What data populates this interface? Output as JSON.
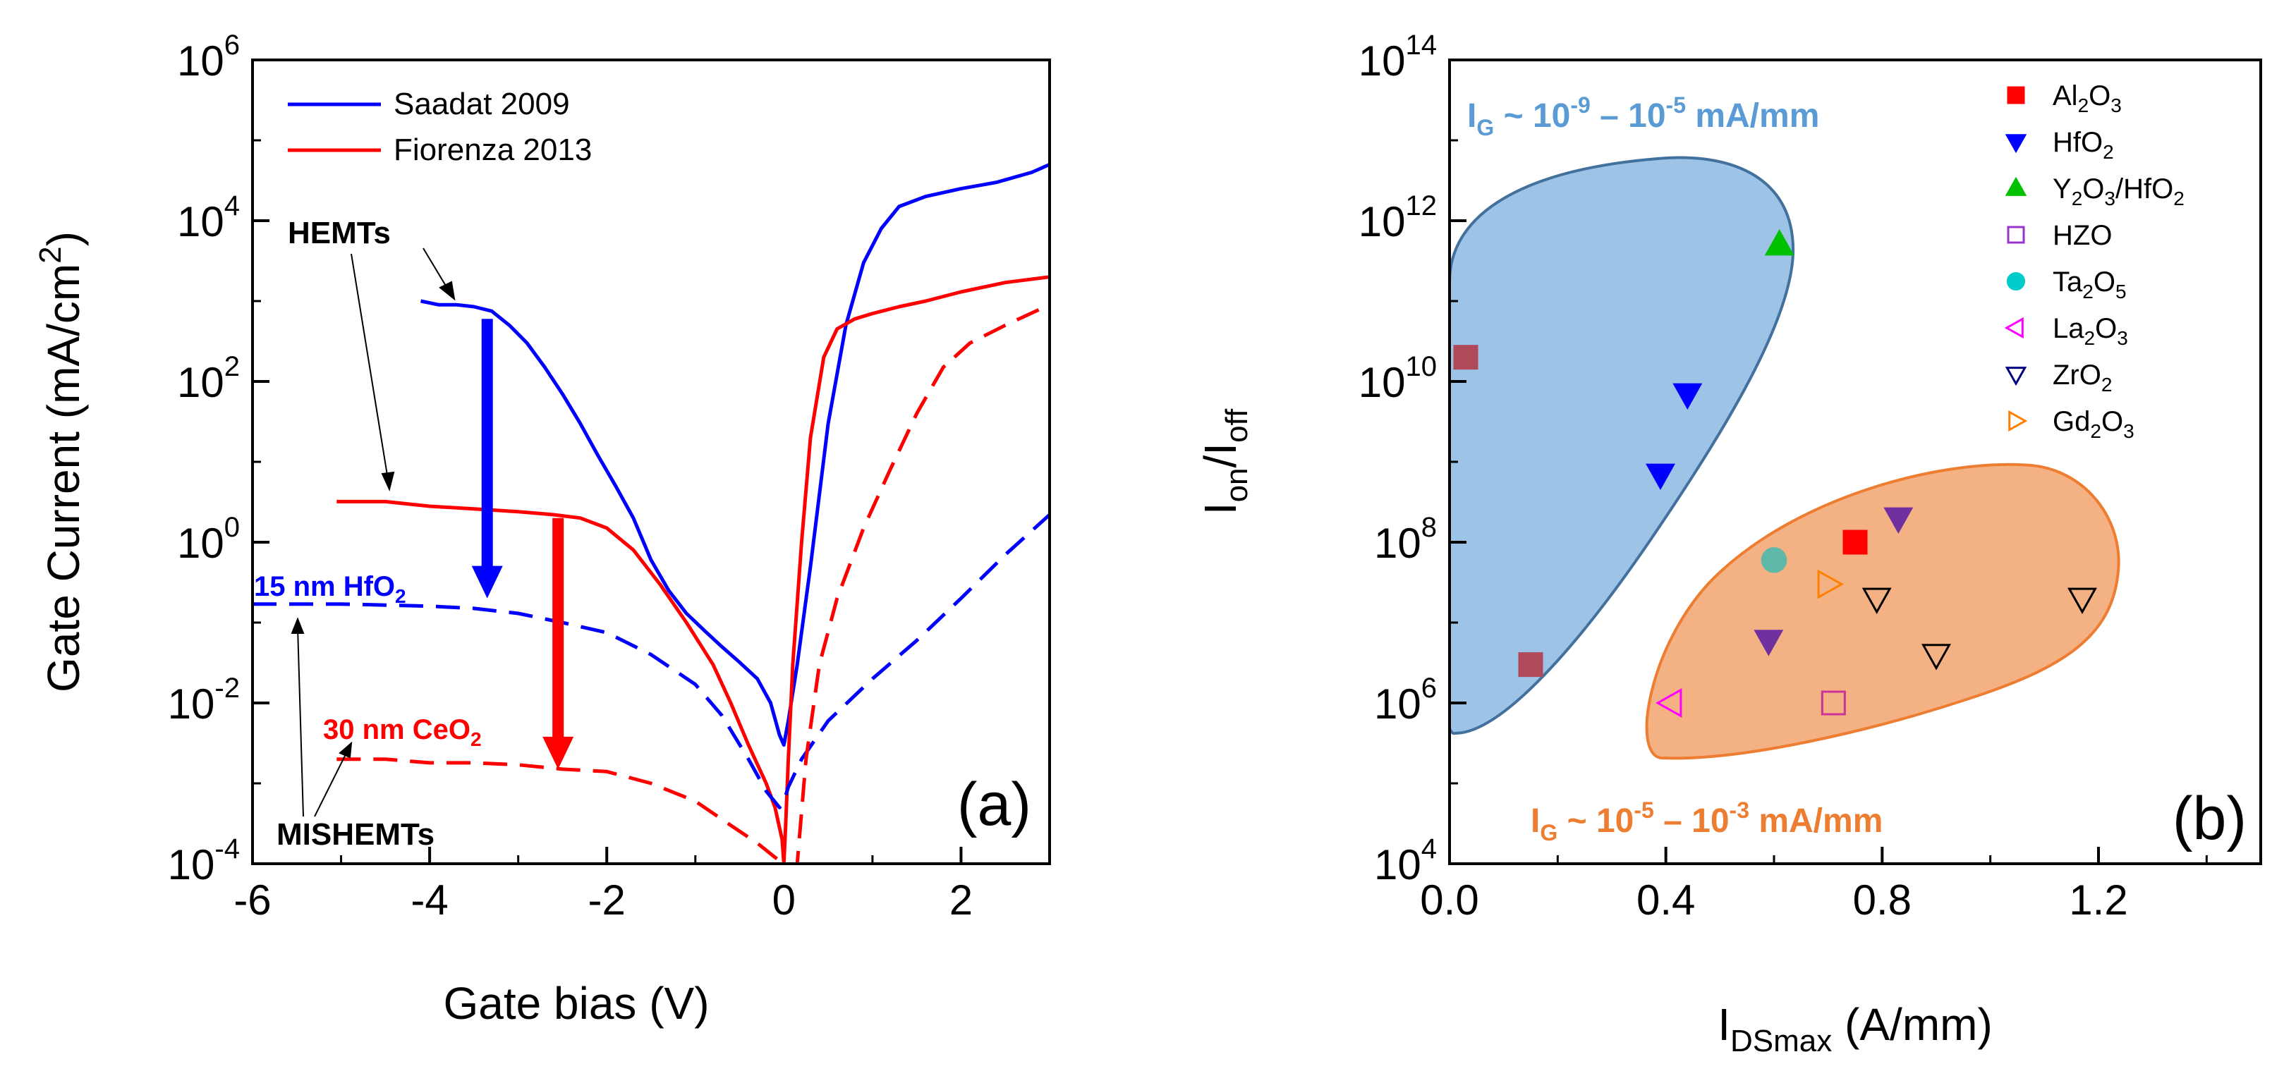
{
  "chart_data": [
    {
      "type": "line",
      "panel_label": "(a)",
      "xlabel": "Gate bias (V)",
      "ylabel": "Gate Current (mA/cm",
      "ylabel_sup": "2",
      "ylabel_end": ")",
      "xlim": [
        -6,
        3
      ],
      "ylim": [
        0.0001,
        1000000.0
      ],
      "yscale": "log",
      "xticks": [
        {
          "v": -6,
          "label": "-6"
        },
        {
          "v": -4,
          "label": "-4"
        },
        {
          "v": -2,
          "label": "-2"
        },
        {
          "v": 0,
          "label": "0"
        },
        {
          "v": 2,
          "label": "2"
        }
      ],
      "yticks": [
        {
          "e": 6,
          "base": "10",
          "exp": "6"
        },
        {
          "e": 4,
          "base": "10",
          "exp": "4"
        },
        {
          "e": 2,
          "base": "10",
          "exp": "2"
        },
        {
          "e": 0,
          "base": "10",
          "exp": "0"
        },
        {
          "e": -2,
          "base": "10",
          "exp": "-2"
        },
        {
          "e": -4,
          "base": "10",
          "exp": "-4"
        }
      ],
      "legend": [
        {
          "name": "Saadat 2009",
          "color": "#0000ff"
        },
        {
          "name": "Fiorenza 2013",
          "color": "#ff0000"
        }
      ],
      "series": [
        {
          "id": "saadat-hemt",
          "color": "#0000ff",
          "dash": false,
          "points": [
            [
              -4.1,
              1000
            ],
            [
              -3.9,
              900
            ],
            [
              -3.7,
              900
            ],
            [
              -3.5,
              850
            ],
            [
              -3.3,
              750
            ],
            [
              -3.1,
              500
            ],
            [
              -2.9,
              300
            ],
            [
              -2.7,
              150
            ],
            [
              -2.5,
              70
            ],
            [
              -2.3,
              30
            ],
            [
              -2.1,
              12
            ],
            [
              -1.9,
              5
            ],
            [
              -1.7,
              2
            ],
            [
              -1.5,
              0.6
            ],
            [
              -1.3,
              0.25
            ],
            [
              -1.1,
              0.13
            ],
            [
              -0.9,
              0.08
            ],
            [
              -0.7,
              0.05
            ],
            [
              -0.5,
              0.032
            ],
            [
              -0.3,
              0.02
            ],
            [
              -0.15,
              0.01
            ],
            [
              -0.05,
              0.004
            ],
            [
              0.0,
              0.003
            ],
            [
              0.05,
              0.006
            ],
            [
              0.15,
              0.03
            ],
            [
              0.3,
              0.5
            ],
            [
              0.5,
              30
            ],
            [
              0.7,
              500
            ],
            [
              0.9,
              3000
            ],
            [
              1.1,
              8000
            ],
            [
              1.3,
              15000
            ],
            [
              1.6,
              20000
            ],
            [
              2.0,
              25000
            ],
            [
              2.4,
              30000
            ],
            [
              2.8,
              40000
            ],
            [
              3.0,
              50000
            ]
          ]
        },
        {
          "id": "fiorenza-hemt",
          "color": "#ff0000",
          "dash": false,
          "points": [
            [
              -5.05,
              3.2
            ],
            [
              -4.5,
              3.2
            ],
            [
              -4.0,
              2.8
            ],
            [
              -3.5,
              2.6
            ],
            [
              -3.0,
              2.4
            ],
            [
              -2.6,
              2.2
            ],
            [
              -2.3,
              2.0
            ],
            [
              -2.0,
              1.5
            ],
            [
              -1.7,
              0.8
            ],
            [
              -1.4,
              0.3
            ],
            [
              -1.1,
              0.1
            ],
            [
              -0.8,
              0.03
            ],
            [
              -0.6,
              0.01
            ],
            [
              -0.4,
              0.003
            ],
            [
              -0.2,
              0.001
            ],
            [
              -0.1,
              0.0005
            ],
            [
              -0.02,
              0.0002
            ],
            [
              0.0,
              0.0001
            ],
            [
              0.02,
              0.0003
            ],
            [
              0.05,
              0.002
            ],
            [
              0.1,
              0.03
            ],
            [
              0.2,
              1
            ],
            [
              0.3,
              20
            ],
            [
              0.45,
              200
            ],
            [
              0.6,
              450
            ],
            [
              0.8,
              600
            ],
            [
              1.0,
              700
            ],
            [
              1.3,
              850
            ],
            [
              1.6,
              1000
            ],
            [
              2.0,
              1300
            ],
            [
              2.5,
              1700
            ],
            [
              3.0,
              2000
            ]
          ]
        },
        {
          "id": "saadat-mishemt",
          "color": "#0000ff",
          "dash": true,
          "points": [
            [
              -6.0,
              0.17
            ],
            [
              -5.0,
              0.17
            ],
            [
              -4.0,
              0.16
            ],
            [
              -3.5,
              0.15
            ],
            [
              -3.0,
              0.13
            ],
            [
              -2.5,
              0.1
            ],
            [
              -2.0,
              0.075
            ],
            [
              -1.5,
              0.04
            ],
            [
              -1.0,
              0.017
            ],
            [
              -0.7,
              0.007
            ],
            [
              -0.4,
              0.002
            ],
            [
              -0.2,
              0.0008
            ],
            [
              -0.05,
              0.0005
            ],
            [
              0.0,
              0.0006
            ],
            [
              0.05,
              0.0009
            ],
            [
              0.2,
              0.002
            ],
            [
              0.5,
              0.006
            ],
            [
              1.0,
              0.02
            ],
            [
              1.5,
              0.06
            ],
            [
              2.0,
              0.2
            ],
            [
              2.5,
              0.7
            ],
            [
              3.0,
              2.2
            ]
          ]
        },
        {
          "id": "fiorenza-mishemt",
          "color": "#ff0000",
          "dash": true,
          "points": [
            [
              -5.05,
              0.002
            ],
            [
              -4.5,
              0.002
            ],
            [
              -4.0,
              0.0018
            ],
            [
              -3.5,
              0.0018
            ],
            [
              -3.0,
              0.0017
            ],
            [
              -2.5,
              0.0015
            ],
            [
              -2.0,
              0.0014
            ],
            [
              -1.5,
              0.001
            ],
            [
              -1.0,
              0.0006
            ],
            [
              -0.6,
              0.0003
            ],
            [
              -0.3,
              0.00018
            ],
            [
              -0.1,
              0.00012
            ],
            [
              0.05,
              9e-05
            ],
            [
              0.15,
              0.0001
            ],
            [
              0.25,
              0.002
            ],
            [
              0.4,
              0.03
            ],
            [
              0.6,
              0.2
            ],
            [
              0.9,
              1.5
            ],
            [
              1.2,
              8
            ],
            [
              1.5,
              40
            ],
            [
              1.8,
              150
            ],
            [
              2.1,
              300
            ],
            [
              2.5,
              500
            ],
            [
              3.0,
              900
            ]
          ]
        }
      ],
      "arrows": [
        {
          "id": "blue-drop-arrow",
          "color": "#0000ff",
          "x": -3.35,
          "y_from": 600,
          "y_to": 0.2
        },
        {
          "id": "red-drop-arrow",
          "color": "#ff0000",
          "x": -2.55,
          "y_from": 2,
          "y_to": 0.0015
        }
      ],
      "annotations": {
        "hemts": "HEMTs",
        "mishemts": "MISHEMTs",
        "hfo2_pre": "15 nm HfO",
        "hfo2_sub": "2",
        "ceo2_pre": "30 nm CeO",
        "ceo2_sub": "2",
        "blue_color": "#0000ff",
        "red_color": "#ff0000"
      }
    },
    {
      "type": "scatter",
      "panel_label": "(b)",
      "xlabel": "I",
      "xlabel_sub": "DSmax",
      "xlabel_end": " (A/mm)",
      "ylabel": "I",
      "ylabel_sub1": "on",
      "ylabel_mid": "/I",
      "ylabel_sub2": "off",
      "xlim": [
        0,
        1.5
      ],
      "ylim": [
        10000.0,
        100000000000000.0
      ],
      "yscale": "log",
      "xticks": [
        {
          "v": 0.0,
          "label": "0.0"
        },
        {
          "v": 0.4,
          "label": "0.4"
        },
        {
          "v": 0.8,
          "label": "0.8"
        },
        {
          "v": 1.2,
          "label": "1.2"
        }
      ],
      "yticks": [
        {
          "e": 14,
          "base": "10",
          "exp": "14"
        },
        {
          "e": 12,
          "base": "10",
          "exp": "12"
        },
        {
          "e": 10,
          "base": "10",
          "exp": "10"
        },
        {
          "e": 8,
          "base": "10",
          "exp": "8"
        },
        {
          "e": 6,
          "base": "10",
          "exp": "6"
        },
        {
          "e": 4,
          "base": "10",
          "exp": "4"
        }
      ],
      "regions": [
        {
          "id": "blue-region",
          "fill": "#9dc3e6",
          "stroke": "#41719c",
          "label_pre": "I",
          "label_sub": "G",
          "label_mid": " ~ 10",
          "label_exp1": "-9",
          "label_dash": " – 10",
          "label_exp2": "-5",
          "label_end": " mA/mm",
          "label_color": "#5b9bd5"
        },
        {
          "id": "orange-region",
          "fill": "#f4b183",
          "stroke": "#ed7d31",
          "label_pre": "I",
          "label_sub": "G",
          "label_mid": " ~ 10",
          "label_exp1": "-5",
          "label_dash": " – 10",
          "label_exp2": "-3",
          "label_end": " mA/mm",
          "label_color": "#ed7d31"
        }
      ],
      "legend": [
        {
          "name": "Al",
          "s1": "2",
          "m": "O",
          "s2": "3",
          "m2": "",
          "s3": "",
          "marker": "square",
          "filled": true,
          "color": "#ff0000"
        },
        {
          "name": "HfO",
          "s1": "2",
          "m": "",
          "s2": "",
          "m2": "",
          "s3": "",
          "marker": "triangle-down",
          "filled": true,
          "color": "#0000ff"
        },
        {
          "name": "Y",
          "s1": "2",
          "m": "O",
          "s2": "3",
          "m2": "/HfO",
          "s3": "2",
          "marker": "triangle-up",
          "filled": true,
          "color": "#00c000"
        },
        {
          "name": "HZO",
          "s1": "",
          "m": "",
          "s2": "",
          "m2": "",
          "s3": "",
          "marker": "square",
          "filled": false,
          "color": "#9933cc"
        },
        {
          "name": "Ta",
          "s1": "2",
          "m": "O",
          "s2": "5",
          "m2": "",
          "s3": "",
          "marker": "circle",
          "filled": true,
          "color": "#00cccc"
        },
        {
          "name": "La",
          "s1": "2",
          "m": "O",
          "s2": "3",
          "m2": "",
          "s3": "",
          "marker": "triangle-left",
          "filled": false,
          "color": "#ff00ff"
        },
        {
          "name": "ZrO",
          "s1": "2",
          "m": "",
          "s2": "",
          "m2": "",
          "s3": "",
          "marker": "triangle-down",
          "filled": false,
          "color": "#000080"
        },
        {
          "name": "Gd",
          "s1": "2",
          "m": "O",
          "s2": "3",
          "m2": "",
          "s3": "",
          "marker": "triangle-right",
          "filled": false,
          "color": "#ff8000"
        }
      ],
      "points": [
        {
          "x": 0.03,
          "y": 20000000000.0,
          "marker": "square",
          "filled": true,
          "color": "#b04a5a"
        },
        {
          "x": 0.15,
          "y": 3000000.0,
          "marker": "square",
          "filled": true,
          "color": "#b04a5a"
        },
        {
          "x": 0.61,
          "y": 500000000000.0,
          "marker": "triangle-up",
          "filled": true,
          "color": "#00c000"
        },
        {
          "x": 0.44,
          "y": 7000000000.0,
          "marker": "triangle-down",
          "filled": true,
          "color": "#0000ff"
        },
        {
          "x": 0.39,
          "y": 700000000.0,
          "marker": "triangle-down",
          "filled": true,
          "color": "#0000ff"
        },
        {
          "x": 0.83,
          "y": 200000000.0,
          "marker": "triangle-down",
          "filled": true,
          "color": "#7030a0"
        },
        {
          "x": 0.59,
          "y": 6000000.0,
          "marker": "triangle-down",
          "filled": true,
          "color": "#7030a0"
        },
        {
          "x": 0.75,
          "y": 100000000.0,
          "marker": "square",
          "filled": true,
          "color": "#ff0000"
        },
        {
          "x": 0.6,
          "y": 60000000.0,
          "marker": "circle",
          "filled": true,
          "color": "#5fb8a8"
        },
        {
          "x": 0.7,
          "y": 30000000.0,
          "marker": "triangle-right",
          "filled": false,
          "color": "#ff8000"
        },
        {
          "x": 0.79,
          "y": 20000000.0,
          "marker": "triangle-down",
          "filled": false,
          "color": "#000000"
        },
        {
          "x": 0.9,
          "y": 4000000.0,
          "marker": "triangle-down",
          "filled": false,
          "color": "#000000"
        },
        {
          "x": 1.17,
          "y": 20000000.0,
          "marker": "triangle-down",
          "filled": false,
          "color": "#000000"
        },
        {
          "x": 0.71,
          "y": 1000000.0,
          "marker": "square",
          "filled": false,
          "color": "#cc3399"
        },
        {
          "x": 0.41,
          "y": 1000000.0,
          "marker": "triangle-left",
          "filled": false,
          "color": "#ff00ff"
        }
      ]
    }
  ]
}
